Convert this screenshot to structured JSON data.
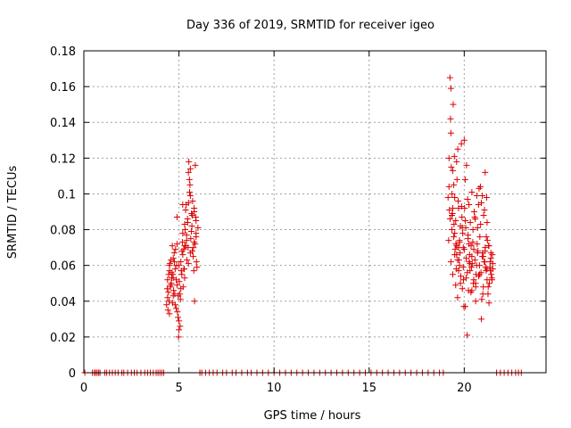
{
  "chart_data": {
    "type": "scatter",
    "title": "Day 336 of 2019, SRMTID for receiver igeo",
    "xlabel": "GPS time / hours",
    "ylabel": "SRMTID / TECUs",
    "xlim": [
      0,
      24.3
    ],
    "ylim": [
      0,
      0.18
    ],
    "x_ticks": [
      0,
      5,
      10,
      15,
      20
    ],
    "x_tick_labels": [
      "0",
      "5",
      "10",
      "15",
      "20"
    ],
    "y_ticks": [
      0,
      0.02,
      0.04,
      0.06,
      0.08,
      0.1,
      0.12,
      0.14,
      0.16,
      0.18
    ],
    "y_tick_labels": [
      "0",
      "0.02",
      "0.04",
      "0.06",
      "0.08",
      "0.1",
      "0.12",
      "0.14",
      "0.16",
      "0.18"
    ],
    "grid": true,
    "marker": "plus",
    "marker_color": "#dd0000",
    "series": [
      {
        "name": "SRMTID",
        "x": [
          0.05,
          0.45,
          0.55,
          0.62,
          0.7,
          0.78,
          0.85,
          1.1,
          1.2,
          1.35,
          1.5,
          1.65,
          1.8,
          2.0,
          2.1,
          2.3,
          2.5,
          2.65,
          2.8,
          3.0,
          3.2,
          3.35,
          3.5,
          3.65,
          3.8,
          3.9,
          4.0,
          4.1,
          4.2,
          6.1,
          6.2,
          6.4,
          6.6,
          6.8,
          7.0,
          7.3,
          7.5,
          7.8,
          8.0,
          8.3,
          8.6,
          8.8,
          9.1,
          9.4,
          9.7,
          10.0,
          10.3,
          10.6,
          10.9,
          11.2,
          11.5,
          11.8,
          12.1,
          12.4,
          12.7,
          13.0,
          13.3,
          13.6,
          13.9,
          14.2,
          14.5,
          14.8,
          15.1,
          15.4,
          15.7,
          16.0,
          16.3,
          16.6,
          16.9,
          17.2,
          17.5,
          17.8,
          18.1,
          18.4,
          18.7,
          18.9,
          21.7,
          21.9,
          22.1,
          22.3,
          22.5,
          22.7,
          22.85,
          23.0,
          4.35,
          4.4,
          4.45,
          4.5,
          4.55,
          4.6,
          4.65,
          4.7,
          4.75,
          4.8,
          4.85,
          4.9,
          4.95,
          5.0,
          5.05,
          5.1,
          5.15,
          5.2,
          5.25,
          5.3,
          5.35,
          5.4,
          5.45,
          5.5,
          5.55,
          5.6,
          5.65,
          5.7,
          5.75,
          5.8,
          5.85,
          5.9,
          5.95,
          6.0,
          4.4,
          4.5,
          4.6,
          4.7,
          4.8,
          4.9,
          5.0,
          5.1,
          5.2,
          5.3,
          5.4,
          5.5,
          5.6,
          5.7,
          5.8,
          5.9,
          4.38,
          4.48,
          4.58,
          4.68,
          4.78,
          4.88,
          4.98,
          5.08,
          5.18,
          5.28,
          5.38,
          5.48,
          5.58,
          5.68,
          5.78,
          5.88,
          4.42,
          4.52,
          4.62,
          4.72,
          4.82,
          4.92,
          5.02,
          5.12,
          5.22,
          5.32,
          5.42,
          5.52,
          5.62,
          5.72,
          5.82,
          5.92,
          4.46,
          4.56,
          4.66,
          4.76,
          4.86,
          4.96,
          5.06,
          5.16,
          5.26,
          5.36,
          5.46,
          5.56,
          5.66,
          5.76,
          5.86,
          4.5,
          4.9,
          5.0,
          5.2,
          5.5,
          5.6,
          5.8,
          5.9,
          4.7,
          5.3,
          19.15,
          19.2,
          19.25,
          19.3,
          19.35,
          19.4,
          19.45,
          19.5,
          19.55,
          19.6,
          19.65,
          19.7,
          19.75,
          19.8,
          19.85,
          19.9,
          19.95,
          20.0,
          20.05,
          20.1,
          20.15,
          20.2,
          20.25,
          20.3,
          20.35,
          20.4,
          20.45,
          20.5,
          20.55,
          20.6,
          20.65,
          20.7,
          20.75,
          20.8,
          20.85,
          20.9,
          20.95,
          21.0,
          21.05,
          21.1,
          21.15,
          21.2,
          21.25,
          21.3,
          21.35,
          21.4,
          21.45,
          21.5,
          19.2,
          19.3,
          19.4,
          19.5,
          19.6,
          19.7,
          19.8,
          19.9,
          20.0,
          20.1,
          20.2,
          20.3,
          20.4,
          20.5,
          20.6,
          20.7,
          20.8,
          20.9,
          21.0,
          21.1,
          21.2,
          21.3,
          21.4,
          21.5,
          19.18,
          19.28,
          19.38,
          19.48,
          19.58,
          19.68,
          19.78,
          19.88,
          19.98,
          20.08,
          20.18,
          20.28,
          20.38,
          20.48,
          20.58,
          20.68,
          20.78,
          20.88,
          20.98,
          21.08,
          21.18,
          21.28,
          21.38,
          21.48,
          19.22,
          19.32,
          19.42,
          19.52,
          19.62,
          19.72,
          19.82,
          19.92,
          20.02,
          20.12,
          20.22,
          20.32,
          20.42,
          20.52,
          20.62,
          20.72,
          20.82,
          20.92,
          21.02,
          21.12,
          21.22,
          21.32,
          21.42,
          19.26,
          19.36,
          19.46,
          19.56,
          19.66,
          19.76,
          19.86,
          19.96,
          20.06,
          20.16,
          20.26,
          20.36,
          20.46,
          20.56,
          20.66,
          20.76,
          20.86,
          20.96,
          21.06,
          21.16,
          21.26,
          21.36,
          21.46,
          19.3,
          19.35,
          19.4,
          19.45,
          19.5,
          19.55,
          19.6,
          19.65,
          19.7,
          19.75,
          20.25,
          20.95,
          21.1,
          21.2,
          20.05,
          20.6,
          19.95,
          20.4
        ],
        "y": [
          0,
          0,
          0,
          0,
          0,
          0,
          0,
          0,
          0,
          0,
          0,
          0,
          0,
          0,
          0,
          0,
          0,
          0,
          0,
          0,
          0,
          0,
          0,
          0,
          0,
          0,
          0,
          0,
          0,
          0,
          0,
          0,
          0,
          0,
          0,
          0,
          0,
          0,
          0,
          0,
          0,
          0,
          0,
          0,
          0,
          0,
          0,
          0,
          0,
          0,
          0,
          0,
          0,
          0,
          0,
          0,
          0,
          0,
          0,
          0,
          0,
          0,
          0,
          0,
          0,
          0,
          0,
          0,
          0,
          0,
          0,
          0,
          0,
          0,
          0,
          0,
          0,
          0,
          0,
          0,
          0,
          0,
          0,
          0,
          0.038,
          0.052,
          0.045,
          0.06,
          0.048,
          0.056,
          0.071,
          0.043,
          0.067,
          0.058,
          0.036,
          0.049,
          0.031,
          0.024,
          0.044,
          0.062,
          0.055,
          0.078,
          0.069,
          0.083,
          0.091,
          0.074,
          0.086,
          0.095,
          0.108,
          0.114,
          0.079,
          0.088,
          0.065,
          0.092,
          0.072,
          0.085,
          0.059,
          0.081,
          0.042,
          0.057,
          0.05,
          0.064,
          0.038,
          0.072,
          0.029,
          0.047,
          0.066,
          0.053,
          0.077,
          0.061,
          0.099,
          0.068,
          0.09,
          0.076,
          0.047,
          0.04,
          0.063,
          0.055,
          0.044,
          0.06,
          0.02,
          0.041,
          0.073,
          0.058,
          0.094,
          0.07,
          0.105,
          0.082,
          0.057,
          0.087,
          0.035,
          0.061,
          0.053,
          0.046,
          0.069,
          0.034,
          0.051,
          0.057,
          0.048,
          0.08,
          0.063,
          0.118,
          0.075,
          0.096,
          0.04,
          0.062,
          0.055,
          0.049,
          0.039,
          0.062,
          0.052,
          0.043,
          0.026,
          0.068,
          0.058,
          0.071,
          0.084,
          0.101,
          0.089,
          0.07,
          0.116,
          0.033,
          0.087,
          0.06,
          0.094,
          0.112,
          0.067,
          0.073,
          0.078,
          0.053,
          0.071,
          0.098,
          0.12,
          0.165,
          0.134,
          0.088,
          0.113,
          0.076,
          0.066,
          0.085,
          0.071,
          0.063,
          0.092,
          0.074,
          0.05,
          0.128,
          0.081,
          0.059,
          0.069,
          0.108,
          0.053,
          0.021,
          0.077,
          0.094,
          0.061,
          0.045,
          0.065,
          0.073,
          0.052,
          0.087,
          0.04,
          0.06,
          0.067,
          0.094,
          0.055,
          0.104,
          0.03,
          0.099,
          0.048,
          0.062,
          0.07,
          0.057,
          0.084,
          0.044,
          0.071,
          0.059,
          0.064,
          0.053,
          0.058,
          0.104,
          0.159,
          0.092,
          0.078,
          0.118,
          0.07,
          0.082,
          0.047,
          0.13,
          0.064,
          0.075,
          0.057,
          0.101,
          0.069,
          0.048,
          0.081,
          0.06,
          0.095,
          0.065,
          0.112,
          0.052,
          0.039,
          0.067,
          0.061,
          0.074,
          0.142,
          0.089,
          0.121,
          0.058,
          0.096,
          0.067,
          0.087,
          0.037,
          0.081,
          0.097,
          0.066,
          0.059,
          0.05,
          0.086,
          0.072,
          0.103,
          0.056,
          0.044,
          0.062,
          0.098,
          0.071,
          0.057,
          0.066,
          0.091,
          0.115,
          0.15,
          0.069,
          0.108,
          0.063,
          0.054,
          0.078,
          0.092,
          0.116,
          0.046,
          0.084,
          0.061,
          0.09,
          0.055,
          0.068,
          0.076,
          0.041,
          0.088,
          0.059,
          0.074,
          0.05,
          0.055,
          0.086,
          0.1,
          0.083,
          0.072,
          0.125,
          0.073,
          0.093,
          0.052,
          0.085,
          0.056,
          0.062,
          0.071,
          0.08,
          0.063,
          0.099,
          0.054,
          0.083,
          0.067,
          0.091,
          0.076,
          0.048,
          0.062,
          0.052,
          0.062,
          0.08,
          0.055,
          0.105,
          0.098,
          0.049,
          0.066,
          0.042,
          0.057,
          0.06,
          0.072,
          0.065,
          0.068,
          0.058,
          0.037,
          0.05,
          0.07,
          0.046
        ]
      }
    ]
  }
}
